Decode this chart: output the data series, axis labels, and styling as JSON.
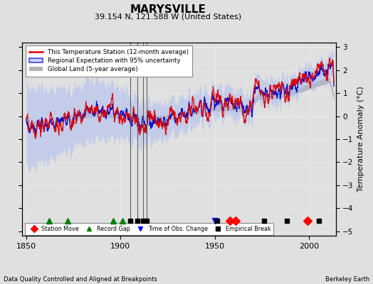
{
  "title": "MARYSVILLE",
  "subtitle": "39.154 N, 121.588 W (United States)",
  "ylabel": "Temperature Anomaly (°C)",
  "xlabel_note": "Data Quality Controlled and Aligned at Breakpoints",
  "credit": "Berkeley Earth",
  "ylim": [
    -5.2,
    3.2
  ],
  "xlim": [
    1848,
    2014
  ],
  "yticks": [
    -5,
    -4,
    -3,
    -2,
    -1,
    0,
    1,
    2,
    3
  ],
  "xticks": [
    1850,
    1900,
    1950,
    2000
  ],
  "bg_color": "#e0e0e0",
  "uncertainty_color": "#b0c0f0",
  "uncertainty_alpha": 0.6,
  "regional_line_color": "#0000cc",
  "station_line_color": "#dd0000",
  "global_land_color": "#aaaaaa",
  "vlines": [
    1905,
    1909,
    1912,
    1914
  ],
  "vline_color": "#555555",
  "marker_events": {
    "station_move": {
      "color": "red",
      "marker": "D",
      "years": [
        1958,
        1961,
        1999
      ]
    },
    "record_gap": {
      "color": "green",
      "marker": "^",
      "years": [
        1862,
        1872,
        1896,
        1901
      ]
    },
    "obs_change": {
      "color": "blue",
      "marker": "v",
      "years": [
        1950
      ]
    },
    "emp_break": {
      "color": "black",
      "marker": "s",
      "years": [
        1905,
        1909,
        1912,
        1914,
        1951,
        1976,
        1988,
        1999,
        2005
      ]
    }
  },
  "seed": 17,
  "start_year": 1850,
  "end_year": 2013
}
